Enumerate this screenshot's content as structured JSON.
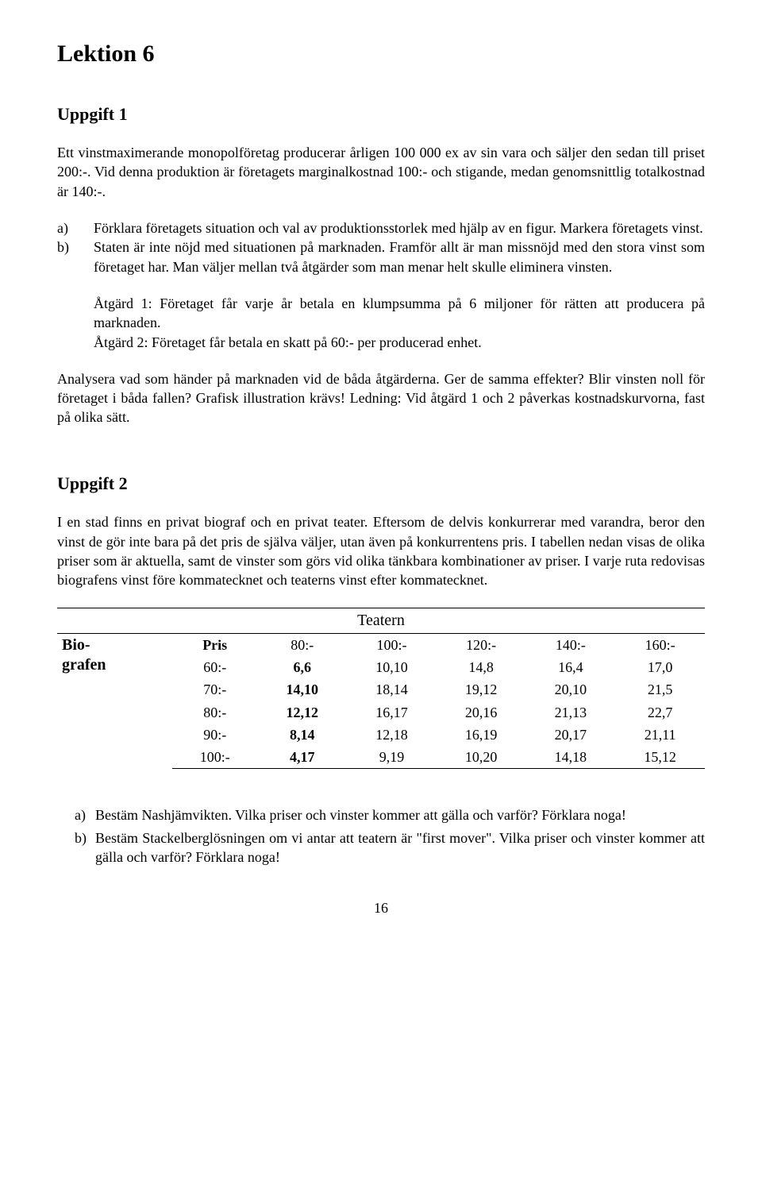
{
  "title": "Lektion 6",
  "uppgift1": {
    "heading": "Uppgift 1",
    "intro": "Ett vinstmaximerande monopolföretag producerar årligen 100 000 ex av sin vara och säljer den sedan till priset 200:-. Vid denna produktion är företagets marginalkostnad 100:- och stigande, medan genomsnittlig totalkostnad är 140:-.",
    "a_label": "a)",
    "a_text": "Förklara företagets situation och val av produktionsstorlek med hjälp av en figur. Markera företagets vinst.",
    "b_label": "b)",
    "b_text": "Staten är inte nöjd med situationen på marknaden. Framför allt är man missnöjd med den stora vinst som företaget har. Man väljer mellan två åtgärder som man menar helt skulle eliminera vinsten.",
    "atgard1": "Åtgärd 1: Företaget får varje år betala en klumpsumma på 6 miljoner för rätten att producera på marknaden.",
    "atgard2": "Åtgärd 2: Företaget får betala en skatt på 60:- per producerad enhet.",
    "analys": "Analysera vad som händer på marknaden vid de båda åtgärderna. Ger de samma effekter? Blir vinsten noll för företaget i båda fallen? Grafisk illustration krävs! Ledning: Vid åtgärd 1 och 2 påverkas kostnadskurvorna, fast på olika sätt."
  },
  "uppgift2": {
    "heading": "Uppgift 2",
    "intro": "I en stad finns en privat biograf och en privat teater. Eftersom de delvis konkurrerar med varandra, beror den vinst de gör inte bara på det pris de själva väljer, utan även på konkurrentens pris. I tabellen nedan visas de olika priser som är aktuella, samt de vinster som görs vid olika tänkbara kombinationer av priser. I varje ruta redovisas biografens vinst före kommatecknet och teaterns vinst efter kommatecknet.",
    "table": {
      "teatern": "Teatern",
      "biografen": "Bio-\ngrafen",
      "pris": "Pris",
      "col_headers": [
        "80:-",
        "100:-",
        "120:-",
        "140:-",
        "160:-"
      ],
      "row_headers": [
        "60:-",
        "70:-",
        "80:-",
        "90:-",
        "100:-"
      ],
      "cells": [
        [
          "6,6",
          "10,10",
          "14,8",
          "16,4",
          "17,0"
        ],
        [
          "14,10",
          "18,14",
          "19,12",
          "20,10",
          "21,5"
        ],
        [
          "12,12",
          "16,17",
          "20,16",
          "21,13",
          "22,7"
        ],
        [
          "8,14",
          "12,18",
          "16,19",
          "20,17",
          "21,11"
        ],
        [
          "4,17",
          "9,19",
          "10,20",
          "14,18",
          "15,12"
        ]
      ]
    },
    "qa_label": "a)",
    "qa_text": "Bestäm Nashjämvikten. Vilka priser och vinster kommer att gälla och varför? Förklara noga!",
    "qb_label": "b)",
    "qb_text": "Bestäm Stackelberglösningen om vi antar att teatern är \"first mover\". Vilka priser och vinster kommer att gälla och varför? Förklara noga!"
  },
  "page_number": "16"
}
